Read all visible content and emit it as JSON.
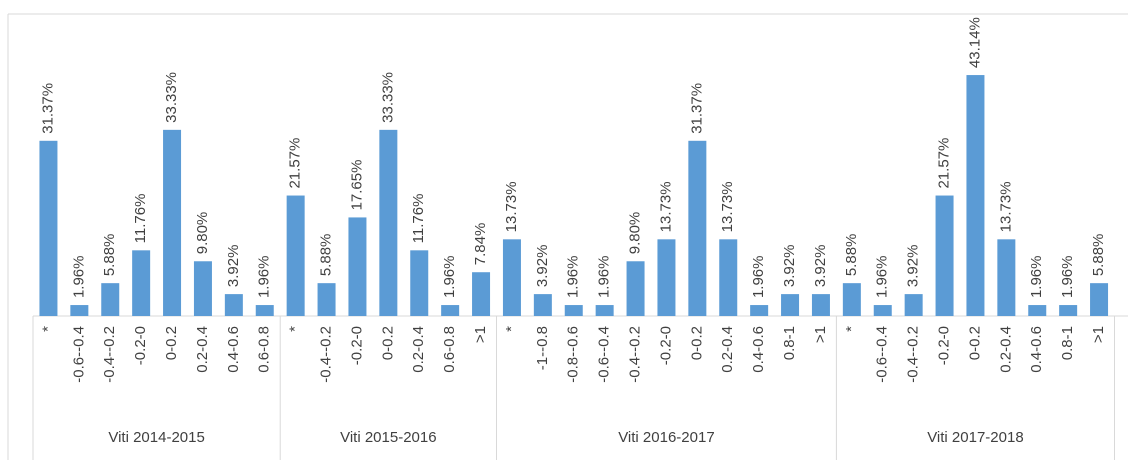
{
  "chart_data": {
    "type": "bar",
    "color": "#5b9bd5",
    "groups": [
      {
        "name": "Viti 2014-2015",
        "categories": [
          "*",
          "-0.6--0.4",
          "-0.4--0.2",
          "-0.2-0",
          "0-0.2",
          "0.2-0.4",
          "0.4-0.6",
          "0.6-0.8"
        ],
        "values": [
          31.37,
          1.96,
          5.88,
          11.76,
          33.33,
          9.8,
          3.92,
          1.96
        ],
        "value_labels": [
          "31.37%",
          "1.96%",
          "5.88%",
          "11.76%",
          "33.33%",
          "9.80%",
          "3.92%",
          "1.96%"
        ]
      },
      {
        "name": "Viti 2015-2016",
        "categories": [
          "*",
          "-0.4--0.2",
          "-0.2-0",
          "0-0.2",
          "0.2-0.4",
          "0.6-0.8",
          ">1"
        ],
        "values": [
          21.57,
          5.88,
          17.65,
          33.33,
          11.76,
          1.96,
          7.84
        ],
        "value_labels": [
          "21.57%",
          "5.88%",
          "17.65%",
          "33.33%",
          "11.76%",
          "1.96%",
          "7.84%"
        ]
      },
      {
        "name": "Viti 2016-2017",
        "categories": [
          "*",
          "-1--0.8",
          "-0.8--0.6",
          "-0.6--0.4",
          "-0.4--0.2",
          "-0.2-0",
          "0-0.2",
          "0.2-0.4",
          "0.4-0.6",
          "0.8-1",
          ">1"
        ],
        "values": [
          13.73,
          3.92,
          1.96,
          1.96,
          9.8,
          13.73,
          31.37,
          13.73,
          1.96,
          3.92,
          3.92
        ],
        "value_labels": [
          "13.73%",
          "3.92%",
          "1.96%",
          "1.96%",
          "9.80%",
          "13.73%",
          "31.37%",
          "13.73%",
          "1.96%",
          "3.92%",
          "3.92%"
        ]
      },
      {
        "name": "Viti 2017-2018",
        "categories": [
          "*",
          "-0.6--0.4",
          "-0.4--0.2",
          "-0.2-0",
          "0-0.2",
          "0.2-0.4",
          "0.4-0.6",
          "0.8-1",
          ">1"
        ],
        "values": [
          5.88,
          1.96,
          3.92,
          21.57,
          43.14,
          13.73,
          1.96,
          1.96,
          5.88
        ],
        "value_labels": [
          "5.88%",
          "1.96%",
          "3.92%",
          "21.57%",
          "43.14%",
          "13.73%",
          "1.96%",
          "1.96%",
          "5.88%"
        ]
      }
    ]
  }
}
